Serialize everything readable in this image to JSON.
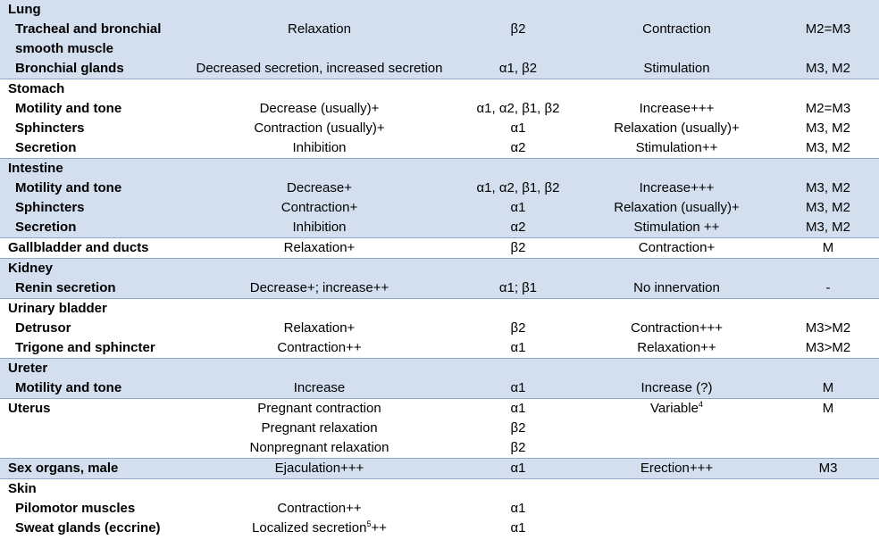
{
  "groups": [
    {
      "title": "Lung",
      "shaded": true,
      "rows": [
        {
          "name": "Tracheal and bronchial smooth muscle",
          "symp": "Relaxation",
          "sr": "β2",
          "para": "Contraction",
          "pr": "M2=M3"
        },
        {
          "name": "Bronchial glands",
          "symp": "Decreased secretion, increased secretion",
          "sr": "α1, β2",
          "para": "Stimulation",
          "pr": "M3, M2"
        }
      ]
    },
    {
      "title": "Stomach",
      "shaded": false,
      "rows": [
        {
          "name": "Motility and tone",
          "symp": "Decrease (usually)+",
          "sr": "α1, α2, β1, β2",
          "para": "Increase+++",
          "pr": "M2=M3"
        },
        {
          "name": "Sphincters",
          "symp": "Contraction (usually)+",
          "sr": "α1",
          "para": "Relaxation (usually)+",
          "pr": "M3, M2"
        },
        {
          "name": "Secretion",
          "symp": "Inhibition",
          "sr": "α2",
          "para": "Stimulation++",
          "pr": "M3, M2"
        }
      ]
    },
    {
      "title": "Intestine",
      "shaded": true,
      "rows": [
        {
          "name": "Motility and tone",
          "symp": "Decrease+",
          "sr": "α1, α2, β1, β2",
          "para": "Increase+++",
          "pr": "M3, M2"
        },
        {
          "name": "Sphincters",
          "symp": "Contraction+",
          "sr": "α1",
          "para": "Relaxation (usually)+",
          "pr": "M3, M2"
        },
        {
          "name": "Secretion",
          "symp": "Inhibition",
          "sr": "α2",
          "para": "Stimulation ++",
          "pr": "M3, M2"
        }
      ]
    },
    {
      "title": "",
      "shaded": false,
      "rows": [
        {
          "name": "Gallbladder and ducts",
          "top": true,
          "symp": "Relaxation+",
          "sr": "β2",
          "para": "Contraction+",
          "pr": "M"
        }
      ]
    },
    {
      "title": "Kidney",
      "shaded": true,
      "rows": [
        {
          "name": "Renin secretion",
          "symp": "Decrease+; increase++",
          "sr": "α1; β1",
          "para": "No innervation",
          "pr": "-"
        }
      ]
    },
    {
      "title": "Urinary bladder",
      "shaded": false,
      "rows": [
        {
          "name": "Detrusor",
          "symp": "Relaxation+",
          "sr": "β2",
          "para": "Contraction+++",
          "pr": "M3>M2"
        },
        {
          "name": "Trigone and sphincter",
          "symp": "Contraction++",
          "sr": "α1",
          "para": "Relaxation++",
          "pr": "M3>M2"
        }
      ]
    },
    {
      "title": "Ureter",
      "shaded": true,
      "rows": [
        {
          "name": "Motility and tone",
          "symp": "Increase",
          "sr": "α1",
          "para": "Increase (?)",
          "pr": "M"
        }
      ]
    },
    {
      "title": "",
      "shaded": false,
      "rows": [
        {
          "name": "Uterus",
          "top": true,
          "symp": "Pregnant contraction",
          "sr": "α1",
          "para": "Variable",
          "para_sup": "4",
          "pr": "M"
        },
        {
          "name": "",
          "symp": "Pregnant relaxation",
          "sr": "β2",
          "para": "",
          "pr": ""
        },
        {
          "name": "",
          "symp": "Nonpregnant relaxation",
          "sr": "β2",
          "para": "",
          "pr": ""
        }
      ]
    },
    {
      "title": "",
      "shaded": true,
      "rows": [
        {
          "name": "Sex organs, male",
          "top": true,
          "symp": "Ejaculation+++",
          "sr": "α1",
          "para": "Erection+++",
          "pr": "M3"
        }
      ]
    },
    {
      "title": "Skin",
      "shaded": false,
      "rows": [
        {
          "name": "Pilomotor muscles",
          "symp": "Contraction++",
          "sr": "α1",
          "para": "",
          "pr": ""
        },
        {
          "name": "Sweat glands (eccrine)",
          "symp": "Localized secretion",
          "symp_sup": "5",
          "symp_tail": "++",
          "sr": "α1",
          "para": "",
          "pr": ""
        }
      ]
    }
  ]
}
